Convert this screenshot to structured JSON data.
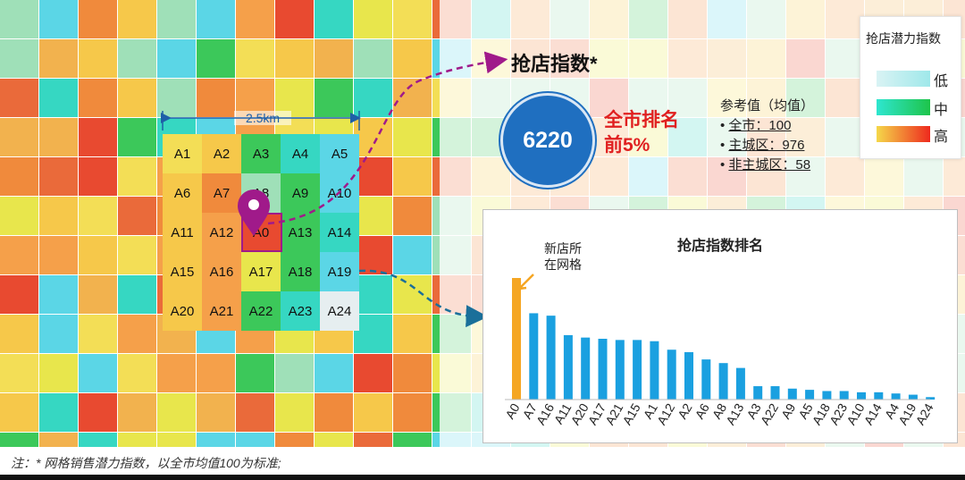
{
  "map": {
    "scale_label": "2.5km",
    "grid_labels": [
      "A1",
      "A2",
      "A3",
      "A4",
      "A5",
      "A6",
      "A7",
      "A8",
      "A9",
      "A10",
      "A11",
      "A12",
      "A0",
      "A13",
      "A14",
      "A15",
      "A16",
      "A17",
      "A18",
      "A19",
      "A20",
      "A21",
      "A22",
      "A23",
      "A24"
    ]
  },
  "score": {
    "title": "抢店指数*",
    "value": "6220",
    "rank_line1": "全市排名",
    "rank_line2": "前5%"
  },
  "reference": {
    "heading": "参考值（均值）",
    "items": [
      {
        "label": "全市：100"
      },
      {
        "label": "主城区：976"
      },
      {
        "label": "非主城区：58"
      }
    ]
  },
  "legend": {
    "title": "抢店潜力指数",
    "items": [
      {
        "label": "低",
        "colors": [
          "#d9f3f4",
          "#9fe8ea"
        ]
      },
      {
        "label": "中",
        "colors": [
          "#2ee6d0",
          "#1ec44a"
        ]
      },
      {
        "label": "高",
        "colors": [
          "#f5d84a",
          "#ee2a1e"
        ]
      }
    ]
  },
  "chart_data": {
    "type": "bar",
    "title": "抢店指数排名",
    "annotation": [
      "新店所",
      "在网格"
    ],
    "categories": [
      "A0",
      "A7",
      "A16",
      "A11",
      "A20",
      "A17",
      "A21",
      "A15",
      "A1",
      "A12",
      "A2",
      "A6",
      "A8",
      "A13",
      "A3",
      "A22",
      "A9",
      "A5",
      "A18",
      "A23",
      "A10",
      "A14",
      "A4",
      "A19",
      "A24"
    ],
    "values": [
      100,
      71,
      69,
      53,
      51,
      50,
      49,
      49,
      48,
      41,
      39,
      33,
      30,
      26,
      11,
      11,
      9,
      8,
      7,
      7,
      6,
      6,
      5,
      4,
      2
    ],
    "highlight_index": 0,
    "colors": {
      "highlight": "#f5a623",
      "bar": "#1aa0e0"
    }
  },
  "footnote": "注：* 网格销售潜力指数，以全市均值100为标准;"
}
